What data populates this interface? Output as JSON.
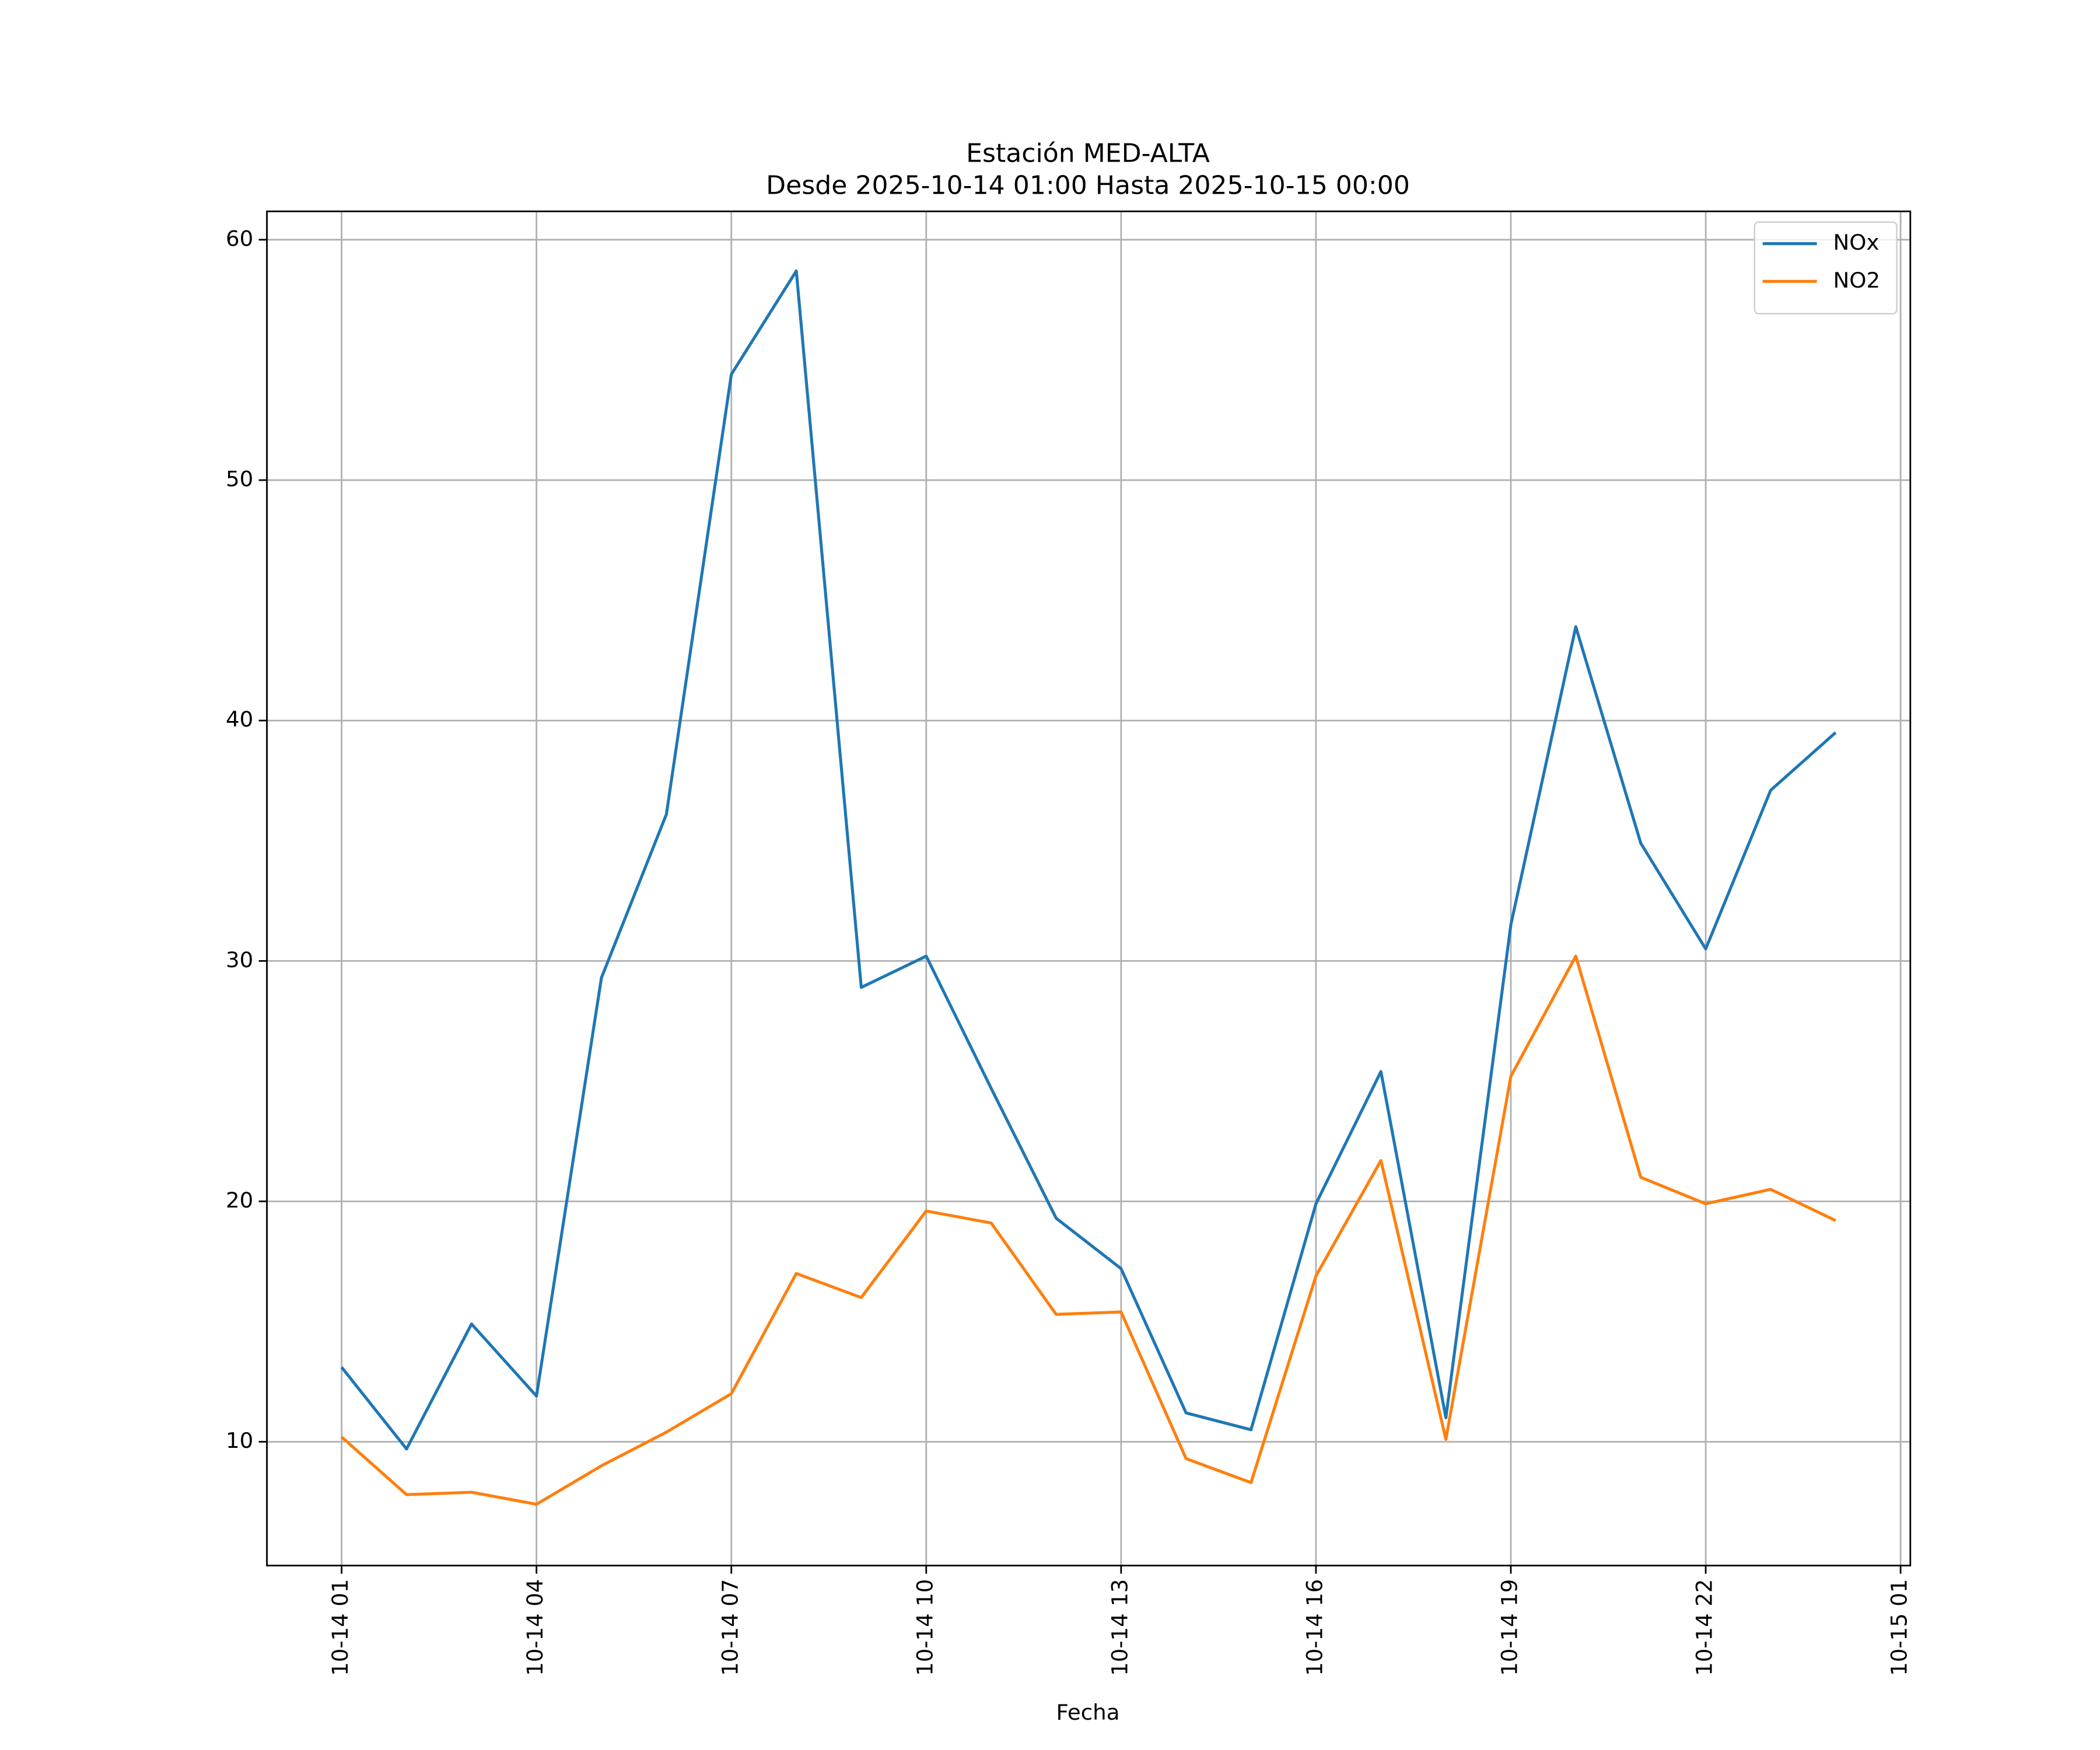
{
  "chart_data": {
    "type": "line",
    "title": "Estación MED-ALTA",
    "subtitle": "Desde 2025-10-14 01:00 Hasta 2025-10-15 00:00",
    "x_label": "Fecha",
    "x": [
      "2025-10-14 01:00",
      "2025-10-14 02:00",
      "2025-10-14 03:00",
      "2025-10-14 04:00",
      "2025-10-14 05:00",
      "2025-10-14 06:00",
      "2025-10-14 07:00",
      "2025-10-14 08:00",
      "2025-10-14 09:00",
      "2025-10-14 10:00",
      "2025-10-14 11:00",
      "2025-10-14 12:00",
      "2025-10-14 13:00",
      "2025-10-14 14:00",
      "2025-10-14 15:00",
      "2025-10-14 16:00",
      "2025-10-14 17:00",
      "2025-10-14 18:00",
      "2025-10-14 19:00",
      "2025-10-14 20:00",
      "2025-10-14 21:00",
      "2025-10-14 22:00",
      "2025-10-14 23:00",
      "2025-10-15 00:00"
    ],
    "series": [
      {
        "name": "NOx",
        "color": "#1f77b4",
        "values": [
          13.1,
          9.7,
          14.9,
          11.9,
          29.3,
          36.1,
          54.4,
          58.7,
          28.9,
          30.2,
          24.7,
          19.3,
          17.2,
          11.2,
          10.5,
          19.9,
          25.4,
          11.0,
          31.5,
          43.9,
          34.9,
          30.5,
          37.1,
          39.5
        ]
      },
      {
        "name": "NO2",
        "color": "#ff7f0e",
        "values": [
          10.2,
          7.8,
          7.9,
          7.4,
          9.0,
          10.4,
          12.0,
          17.0,
          16.0,
          19.6,
          19.1,
          15.3,
          15.4,
          9.3,
          8.3,
          16.9,
          21.7,
          10.1,
          25.2,
          30.2,
          21.0,
          19.9,
          20.5,
          19.2
        ]
      }
    ],
    "xlim": [
      "2025-10-13 23:51",
      "2025-10-15 01:09"
    ],
    "xticks": [
      {
        "value": "2025-10-14 01:00",
        "label": "10-14 01"
      },
      {
        "value": "2025-10-14 04:00",
        "label": "10-14 04"
      },
      {
        "value": "2025-10-14 07:00",
        "label": "10-14 07"
      },
      {
        "value": "2025-10-14 10:00",
        "label": "10-14 10"
      },
      {
        "value": "2025-10-14 13:00",
        "label": "10-14 13"
      },
      {
        "value": "2025-10-14 16:00",
        "label": "10-14 16"
      },
      {
        "value": "2025-10-14 19:00",
        "label": "10-14 19"
      },
      {
        "value": "2025-10-14 22:00",
        "label": "10-14 22"
      },
      {
        "value": "2025-10-15 01:00",
        "label": "10-15 01"
      }
    ],
    "ylim": [
      4.85,
      61.18
    ],
    "yticks": [
      10,
      20,
      30,
      40,
      50,
      60
    ],
    "grid": true,
    "legend": "upper right"
  }
}
